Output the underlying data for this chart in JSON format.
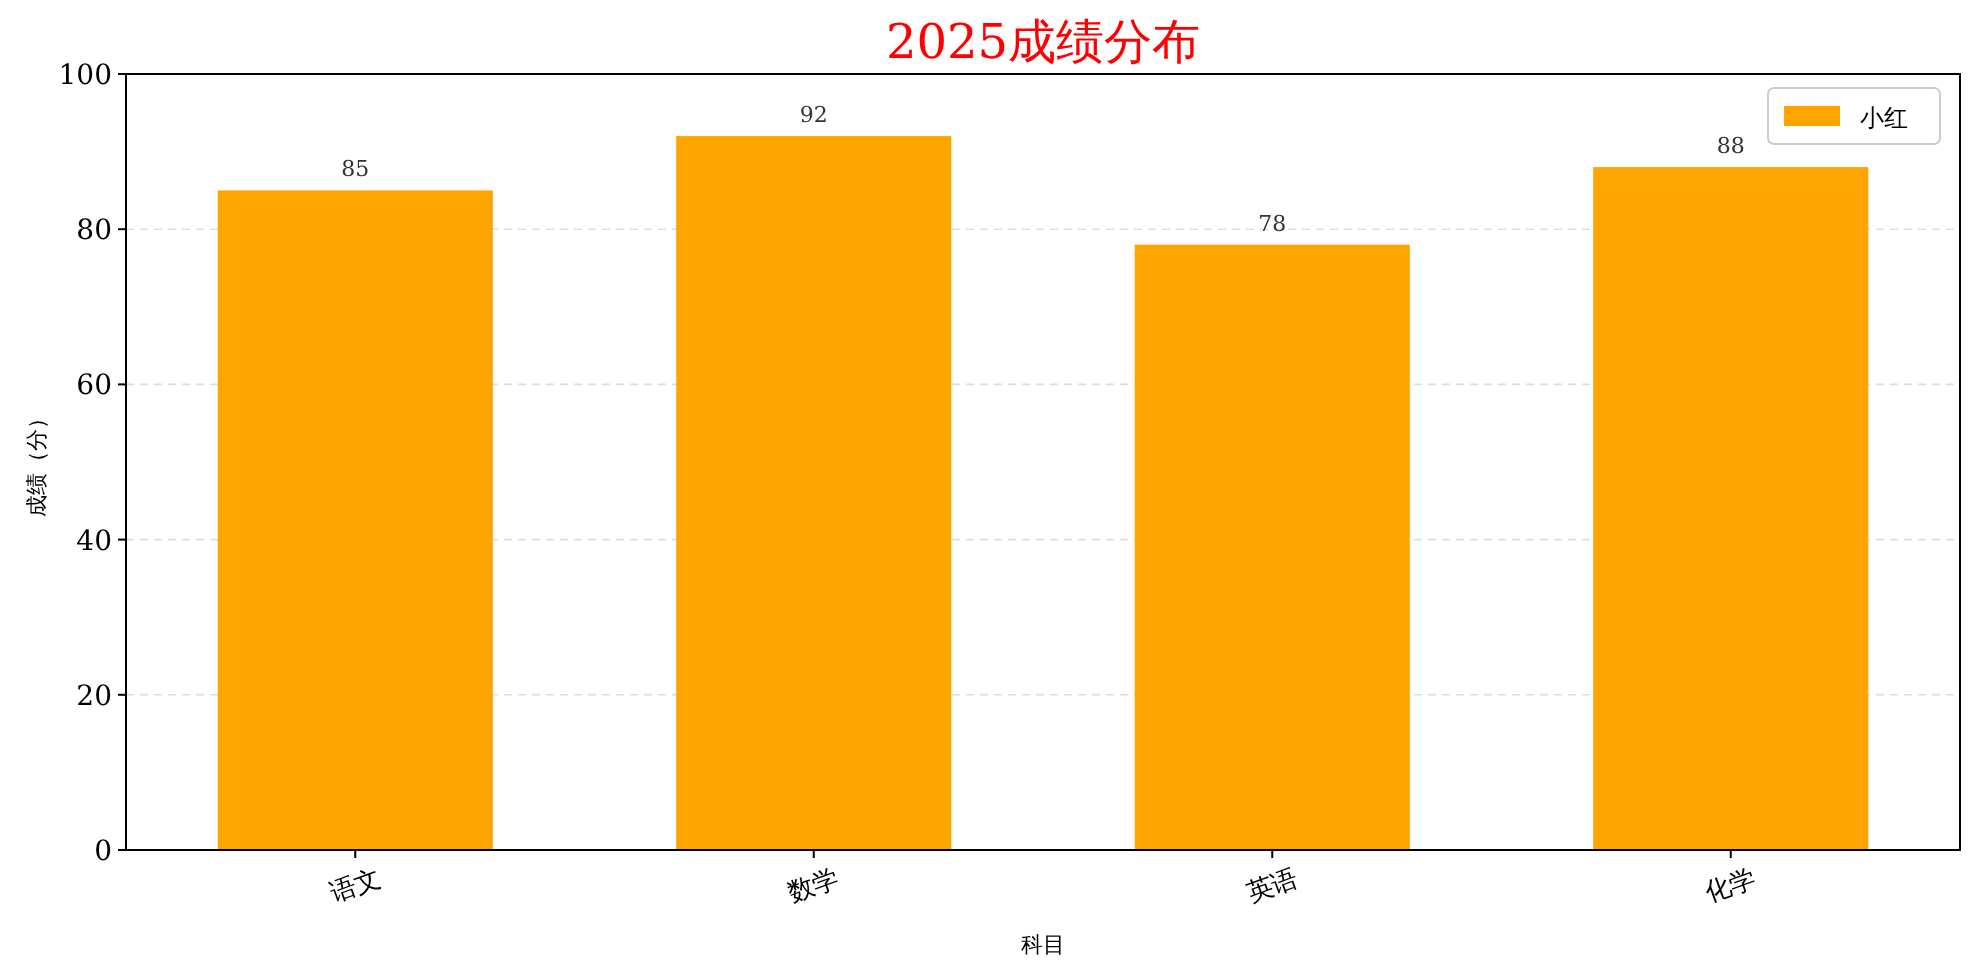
{
  "chart_data": {
    "type": "bar",
    "title": "2025成绩分布",
    "xlabel": "科目",
    "ylabel": "成绩（分）",
    "categories": [
      "语文",
      "数学",
      "英语",
      "化学"
    ],
    "series": [
      {
        "name": "小红",
        "color": "#ffa500",
        "values": [
          85,
          92,
          78,
          88
        ]
      }
    ],
    "ylim": [
      0,
      100
    ],
    "yticks": [
      0,
      20,
      40,
      60,
      80,
      100
    ],
    "grid": "y",
    "legend": "top right",
    "data_labels": true
  }
}
